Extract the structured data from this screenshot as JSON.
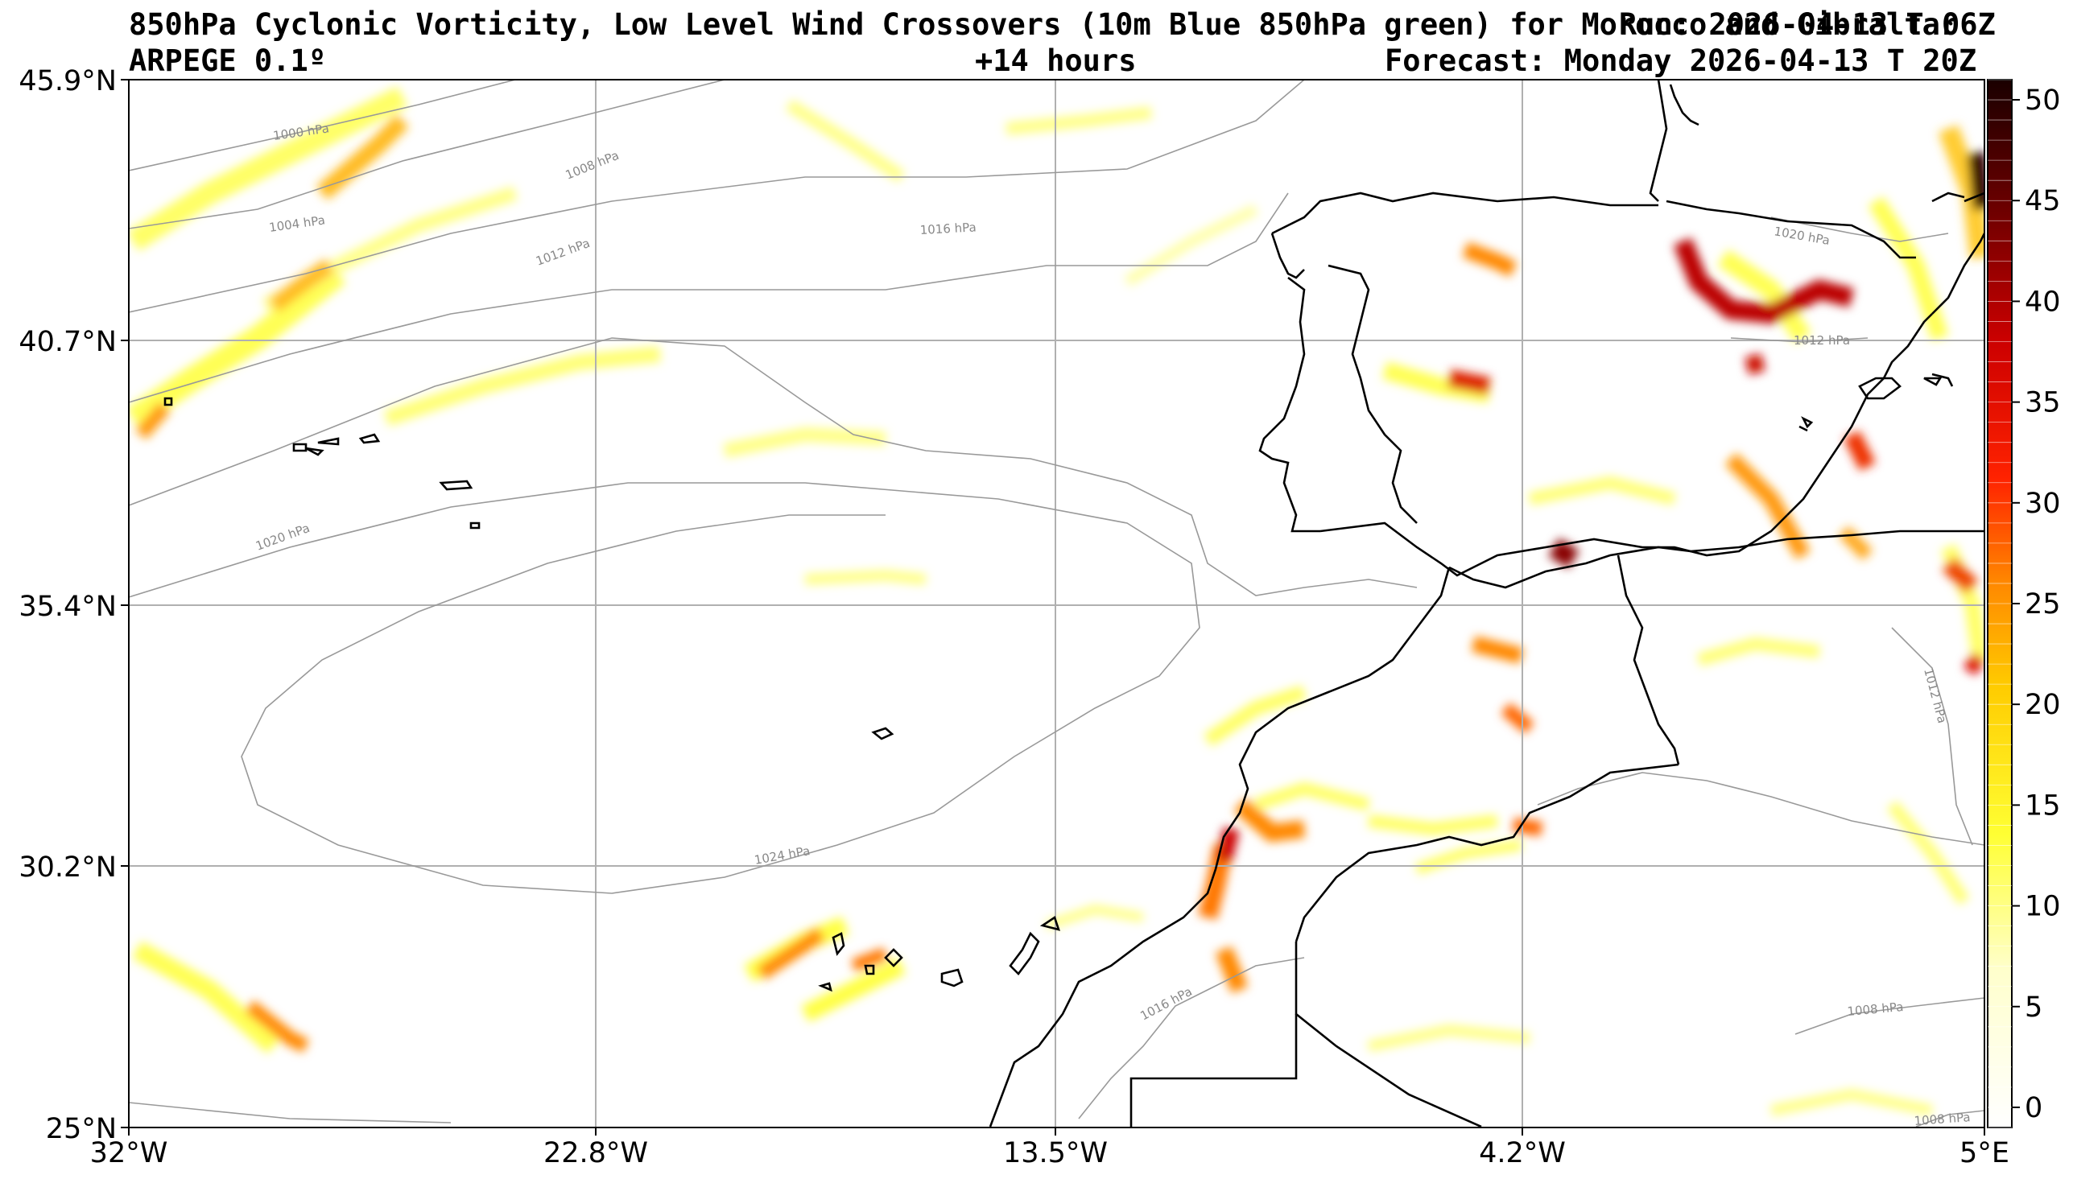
{
  "header": {
    "title": "850hPa Cyclonic Vorticity, Low Level Wind Crossovers (10m Blue 850hPa green) for Morocco and Gibraltar",
    "run": "Run: 2026-04-13 T 06Z",
    "model": "ARPEGE 0.1º",
    "lead": "+14 hours",
    "valid": "Forecast: Monday 2026-04-13 T 20Z"
  },
  "map": {
    "lat_ticks": [
      "45.9°N",
      "40.7°N",
      "35.4°N",
      "30.2°N",
      "25°N"
    ],
    "lon_ticks": [
      "32°W",
      "22.8°W",
      "13.5°W",
      "4.2°W",
      "5°E"
    ],
    "isobar_labels": [
      "1000 hPa",
      "1004 hPa",
      "1008 hPa",
      "1012 hPa",
      "1016 hPa",
      "1020 hPa",
      "1024 hPa",
      "1020 hPa",
      "1012 hPa",
      "1016 hPa",
      "1008 hPa",
      "1012 hPa",
      "1008 hPa"
    ],
    "colors": {
      "coast": "#000000",
      "grid": "#b0b0b0",
      "isobar": "#999999"
    }
  },
  "colorbar": {
    "ticks": [
      "0",
      "5",
      "10",
      "15",
      "20",
      "25",
      "30",
      "35",
      "40",
      "45",
      "50"
    ],
    "range": [
      -1,
      51
    ],
    "colormap": "hot_r (white-yellow-orange-red-black)"
  }
}
